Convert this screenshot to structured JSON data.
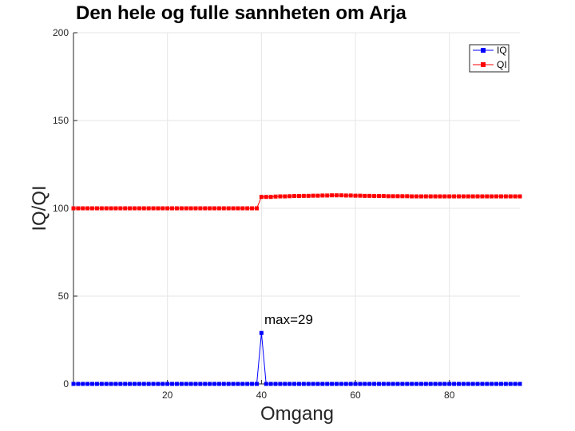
{
  "chart_data": {
    "type": "line",
    "title": "Den hele og fulle sannheten om Arja",
    "xlabel": "Omgang",
    "ylabel": "IQ/QI",
    "xlim": [
      0,
      95
    ],
    "ylim": [
      0,
      200
    ],
    "xticks": [
      20,
      40,
      60,
      80
    ],
    "yticks": [
      0,
      50,
      100,
      150,
      200
    ],
    "grid": true,
    "legend_position": "top-right",
    "annotation": {
      "text": "max=29",
      "x": 40,
      "y": 29
    },
    "series": [
      {
        "name": "IQ",
        "color": "#0000ff",
        "marker": "square",
        "values": [
          0,
          0,
          0,
          0,
          0,
          0,
          0,
          0,
          0,
          0,
          0,
          0,
          0,
          0,
          0,
          0,
          0,
          0,
          0,
          0,
          0,
          0,
          0,
          0,
          0,
          0,
          0,
          0,
          0,
          0,
          0,
          0,
          0,
          0,
          0,
          0,
          0,
          0,
          0,
          0,
          29,
          0,
          0,
          0,
          0,
          0,
          0,
          0,
          0,
          0,
          0,
          0,
          0,
          0,
          0,
          0,
          0,
          0,
          0,
          0,
          0,
          0,
          0,
          0,
          0,
          0,
          0,
          0,
          0,
          0,
          0,
          0,
          0,
          0,
          0,
          0,
          0,
          0,
          0,
          0,
          0,
          0,
          0,
          0,
          0,
          0,
          0,
          0,
          0,
          0,
          0,
          0,
          0,
          0,
          0,
          0
        ]
      },
      {
        "name": "QI",
        "color": "#ff0000",
        "marker": "square",
        "values": [
          100,
          100,
          100,
          100,
          100,
          100,
          100,
          100,
          100,
          100,
          100,
          100,
          100,
          100,
          100,
          100,
          100,
          100,
          100,
          100,
          100,
          100,
          100,
          100,
          100,
          100,
          100,
          100,
          100,
          100,
          100,
          100,
          100,
          100,
          100,
          100,
          100,
          100,
          100,
          100,
          106.5,
          106.5,
          106.5,
          106.7,
          106.8,
          106.8,
          106.9,
          107,
          107,
          107.1,
          107.1,
          107.2,
          107.2,
          107.3,
          107.3,
          107.4,
          107.4,
          107.4,
          107.3,
          107.3,
          107.2,
          107.2,
          107.1,
          107.1,
          107,
          107,
          107,
          106.9,
          106.9,
          106.9,
          106.9,
          106.9,
          106.8,
          106.8,
          106.8,
          106.8,
          106.8,
          106.8,
          106.8,
          106.8,
          106.8,
          106.8,
          106.8,
          106.8,
          106.8,
          106.8,
          106.8,
          106.8,
          106.8,
          106.8,
          106.8,
          106.8,
          106.8,
          106.8,
          106.8,
          106.8
        ]
      }
    ]
  }
}
